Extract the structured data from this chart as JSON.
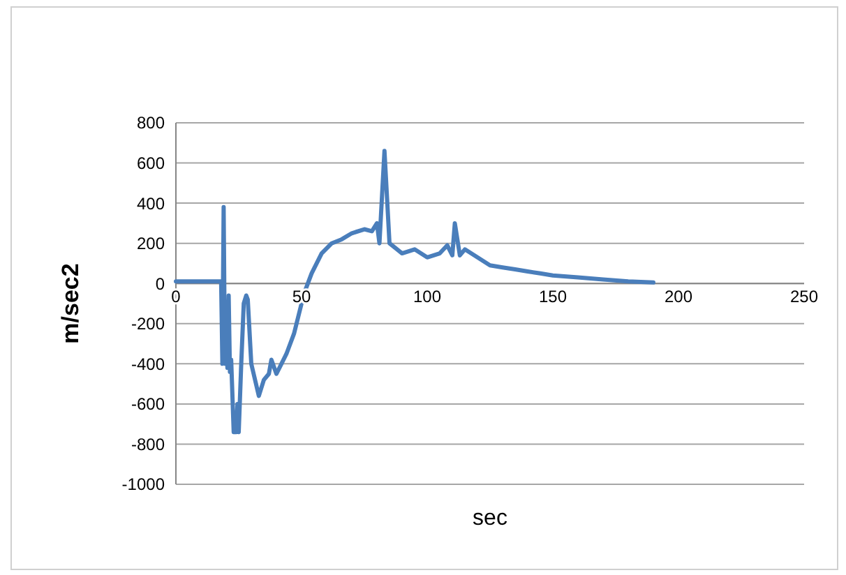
{
  "chart_data": {
    "type": "line",
    "xlabel": "sec",
    "ylabel": "m/sec2",
    "xlim": [
      0,
      250
    ],
    "xticks": [
      0,
      50,
      100,
      150,
      200,
      250
    ],
    "ylim": [
      -1000,
      800
    ],
    "yticks": [
      -1000,
      -800,
      -600,
      -400,
      -200,
      0,
      200,
      400,
      600,
      800
    ],
    "grid": "y",
    "marker": "none",
    "line_style": "solid",
    "series": [
      {
        "color": "#4a7ebb",
        "x": [
          0,
          10,
          18,
          18.5,
          19,
          19.5,
          20,
          20.5,
          21,
          21.5,
          22,
          23,
          24,
          24.5,
          25,
          26,
          27,
          28,
          28.6,
          30,
          33,
          35,
          37,
          38,
          40,
          42,
          44,
          47,
          49,
          51,
          54,
          58,
          62,
          66,
          70,
          75,
          78,
          80,
          81,
          83,
          85,
          87,
          90,
          95,
          100,
          105,
          108,
          110,
          111,
          113,
          115,
          120,
          125,
          130,
          135,
          140,
          145,
          150,
          160,
          170,
          180,
          190
        ],
        "values": [
          10,
          10,
          10,
          -400,
          380,
          -400,
          -100,
          -420,
          -60,
          -440,
          -380,
          -740,
          -740,
          -600,
          -740,
          -400,
          -100,
          -60,
          -80,
          -400,
          -560,
          -480,
          -450,
          -380,
          -450,
          -400,
          -350,
          -250,
          -150,
          -50,
          50,
          150,
          200,
          220,
          250,
          270,
          260,
          300,
          200,
          660,
          200,
          180,
          150,
          170,
          130,
          150,
          190,
          140,
          300,
          140,
          170,
          130,
          90,
          80,
          70,
          60,
          50,
          40,
          30,
          20,
          10,
          5
        ]
      }
    ]
  }
}
